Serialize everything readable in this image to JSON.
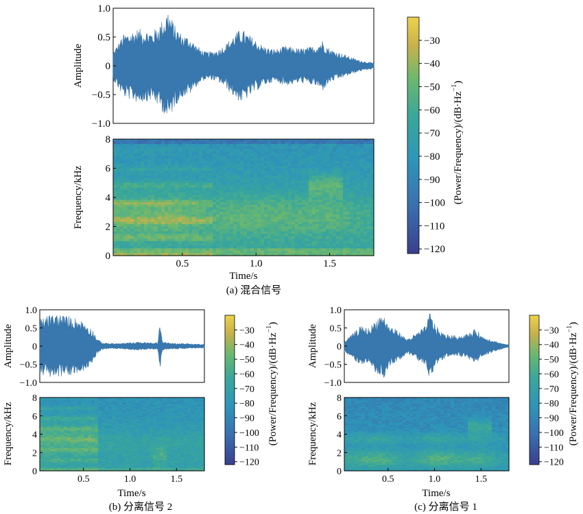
{
  "chart_data": [
    {
      "type": "line",
      "subplot": "a-waveform",
      "ylabel": "Amplitude",
      "xlim": [
        0.03,
        1.8
      ],
      "ylim": [
        -1.0,
        1.0
      ],
      "yticks": [
        "1.0",
        "0.5",
        "0",
        "−0.5",
        "−1.0"
      ],
      "color": "#3878ae",
      "envelope": {
        "t": [
          0.03,
          0.1,
          0.2,
          0.3,
          0.38,
          0.4,
          0.45,
          0.5,
          0.55,
          0.6,
          0.65,
          0.7,
          0.75,
          0.8,
          0.85,
          0.9,
          0.95,
          1.0,
          1.05,
          1.1,
          1.15,
          1.2,
          1.3,
          1.4,
          1.45,
          1.5,
          1.6,
          1.7,
          1.8
        ],
        "amp": [
          0.25,
          0.55,
          0.65,
          0.6,
          0.85,
          1.0,
          0.7,
          0.55,
          0.5,
          0.35,
          0.25,
          0.25,
          0.3,
          0.4,
          0.55,
          0.65,
          0.55,
          0.45,
          0.35,
          0.3,
          0.3,
          0.35,
          0.3,
          0.35,
          0.45,
          0.3,
          0.2,
          0.1,
          0.05
        ]
      }
    },
    {
      "type": "heatmap",
      "subplot": "a-spectrogram",
      "ylabel": "Frequency/kHz",
      "xlabel": "Time/s",
      "xlim": [
        0.03,
        1.8
      ],
      "ylim": [
        0,
        8
      ],
      "xticks": [
        "0.5",
        "1.0",
        "1.5"
      ],
      "yticks": [
        "0",
        "2",
        "4",
        "6",
        "8"
      ],
      "caption": "(a) 混合信号"
    },
    {
      "type": "line",
      "subplot": "b-waveform",
      "ylabel": "Amplitude",
      "xlim": [
        0.03,
        1.8
      ],
      "ylim": [
        -1.0,
        1.0
      ],
      "yticks": [
        "1.0",
        "0.5",
        "0",
        "−0.5",
        "−1.0"
      ],
      "color": "#3878ae",
      "envelope": {
        "t": [
          0.03,
          0.1,
          0.2,
          0.3,
          0.4,
          0.5,
          0.6,
          0.65,
          0.7,
          0.8,
          0.9,
          1.0,
          1.1,
          1.2,
          1.3,
          1.32,
          1.35,
          1.4,
          1.5,
          1.6,
          1.7,
          1.8
        ],
        "amp": [
          0.75,
          0.85,
          0.9,
          0.85,
          0.8,
          0.7,
          0.45,
          0.2,
          0.1,
          0.08,
          0.08,
          0.1,
          0.12,
          0.1,
          0.1,
          0.7,
          0.12,
          0.1,
          0.08,
          0.08,
          0.06,
          0.06
        ]
      }
    },
    {
      "type": "heatmap",
      "subplot": "b-spectrogram",
      "ylabel": "Frequency/kHz",
      "xlabel": "Time/s",
      "xlim": [
        0.03,
        1.8
      ],
      "ylim": [
        0,
        8
      ],
      "xticks": [
        "0.5",
        "1.0",
        "1.5"
      ],
      "yticks": [
        "0",
        "2",
        "4",
        "6",
        "8"
      ],
      "caption": "(b) 分离信号 2"
    },
    {
      "type": "line",
      "subplot": "c-waveform",
      "ylabel": "Amplitude",
      "xlim": [
        0.03,
        1.8
      ],
      "ylim": [
        -1.0,
        1.0
      ],
      "yticks": [
        "1.0",
        "0.5",
        "0",
        "−0.5",
        "−1.0"
      ],
      "color": "#3878ae",
      "envelope": {
        "t": [
          0.03,
          0.1,
          0.2,
          0.3,
          0.4,
          0.45,
          0.5,
          0.6,
          0.7,
          0.8,
          0.9,
          0.95,
          1.0,
          1.05,
          1.1,
          1.2,
          1.3,
          1.4,
          1.45,
          1.5,
          1.6,
          1.7,
          1.8
        ],
        "amp": [
          0.15,
          0.3,
          0.55,
          0.5,
          0.85,
          0.9,
          0.6,
          0.45,
          0.2,
          0.35,
          0.55,
          0.95,
          0.65,
          0.45,
          0.35,
          0.3,
          0.3,
          0.4,
          0.5,
          0.3,
          0.2,
          0.1,
          0.03
        ]
      }
    },
    {
      "type": "heatmap",
      "subplot": "c-spectrogram",
      "ylabel": "Frequency/kHz",
      "xlabel": "Time/s",
      "xlim": [
        0.03,
        1.8
      ],
      "ylim": [
        0,
        8
      ],
      "xticks": [
        "0.5",
        "1.0",
        "1.5"
      ],
      "yticks": [
        "0",
        "2",
        "4",
        "6",
        "8"
      ],
      "caption": "(c) 分离信号 1"
    }
  ],
  "colorbar": {
    "label": "(Power/Frequency)/(dB·Hz",
    "label_sup": "−1",
    "label_close": ")",
    "range": [
      -122,
      -20
    ],
    "ticks": [
      "−30",
      "−40",
      "−50",
      "−60",
      "−70",
      "−80",
      "−90",
      "−100",
      "−110",
      "−120"
    ],
    "colors": [
      "#3b3e8f",
      "#3a6fb0",
      "#2e96b8",
      "#3aa79a",
      "#6cb86f",
      "#c8b14a",
      "#ecd24c"
    ]
  }
}
